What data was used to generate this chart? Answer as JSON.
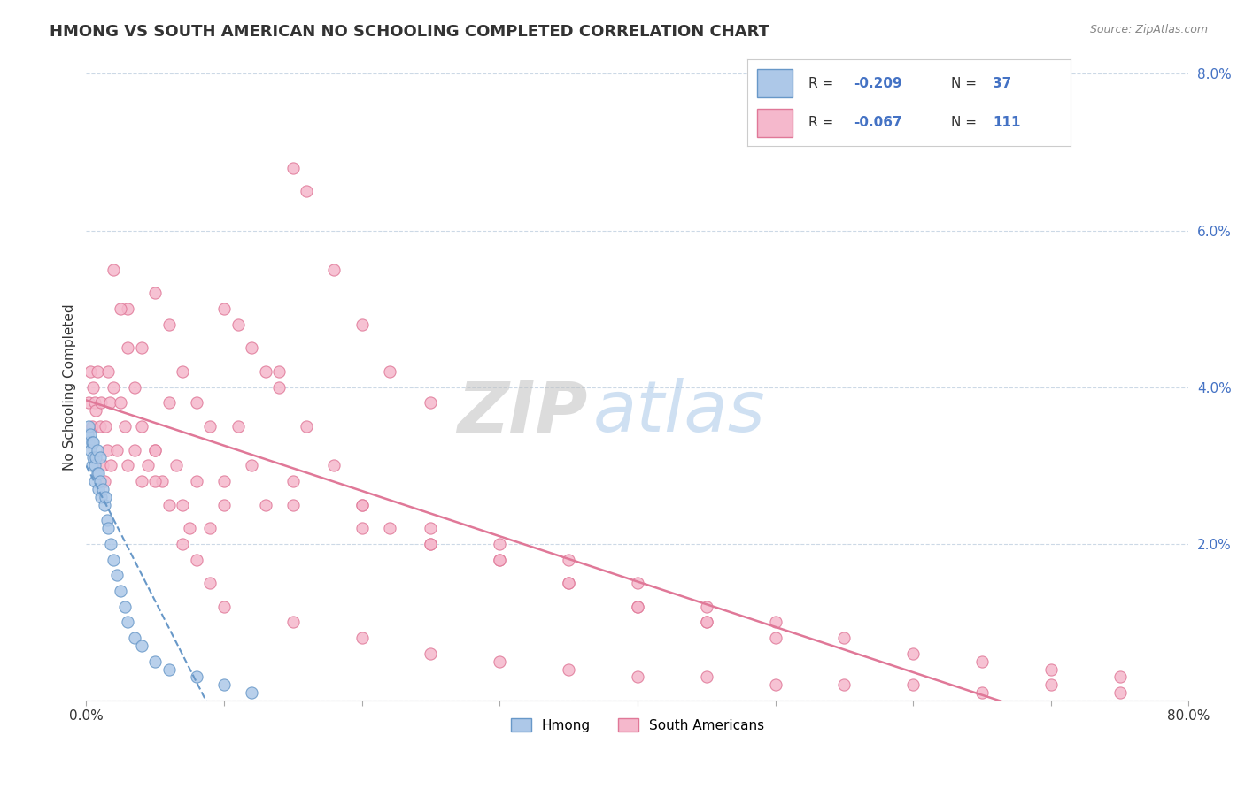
{
  "title": "HMONG VS SOUTH AMERICAN NO SCHOOLING COMPLETED CORRELATION CHART",
  "source": "Source: ZipAtlas.com",
  "ylabel": "No Schooling Completed",
  "xlim": [
    0.0,
    0.8
  ],
  "ylim": [
    0.0,
    0.08
  ],
  "legend_R1": "-0.209",
  "legend_N1": "37",
  "legend_R2": "-0.067",
  "legend_N2": "111",
  "legend_label1": "Hmong",
  "legend_label2": "South Americans",
  "hmong_color": "#adc8e8",
  "hmong_edge_color": "#6898c8",
  "sa_color": "#f5b8cc",
  "sa_edge_color": "#e07898",
  "trend1_color": "#6898c8",
  "trend2_color": "#e07898",
  "hmong_x": [
    0.001,
    0.002,
    0.002,
    0.003,
    0.003,
    0.004,
    0.004,
    0.005,
    0.005,
    0.006,
    0.006,
    0.007,
    0.008,
    0.008,
    0.009,
    0.009,
    0.01,
    0.01,
    0.011,
    0.012,
    0.013,
    0.014,
    0.015,
    0.016,
    0.018,
    0.02,
    0.022,
    0.025,
    0.028,
    0.03,
    0.035,
    0.04,
    0.05,
    0.06,
    0.08,
    0.1,
    0.12
  ],
  "hmong_y": [
    0.034,
    0.033,
    0.035,
    0.032,
    0.034,
    0.03,
    0.033,
    0.031,
    0.033,
    0.028,
    0.03,
    0.031,
    0.029,
    0.032,
    0.027,
    0.029,
    0.028,
    0.031,
    0.026,
    0.027,
    0.025,
    0.026,
    0.023,
    0.022,
    0.02,
    0.018,
    0.016,
    0.014,
    0.012,
    0.01,
    0.008,
    0.007,
    0.005,
    0.004,
    0.003,
    0.002,
    0.001
  ],
  "sa_x": [
    0.002,
    0.003,
    0.004,
    0.005,
    0.006,
    0.007,
    0.008,
    0.01,
    0.011,
    0.012,
    0.013,
    0.014,
    0.015,
    0.016,
    0.017,
    0.018,
    0.02,
    0.022,
    0.025,
    0.028,
    0.03,
    0.035,
    0.04,
    0.045,
    0.05,
    0.055,
    0.06,
    0.065,
    0.07,
    0.075,
    0.08,
    0.09,
    0.1,
    0.11,
    0.12,
    0.13,
    0.14,
    0.15,
    0.16,
    0.18,
    0.2,
    0.22,
    0.25,
    0.03,
    0.04,
    0.05,
    0.06,
    0.07,
    0.08,
    0.09,
    0.1,
    0.11,
    0.12,
    0.13,
    0.14,
    0.16,
    0.18,
    0.2,
    0.22,
    0.25,
    0.3,
    0.35,
    0.4,
    0.45,
    0.5,
    0.02,
    0.025,
    0.03,
    0.035,
    0.04,
    0.05,
    0.06,
    0.07,
    0.08,
    0.09,
    0.1,
    0.15,
    0.2,
    0.25,
    0.3,
    0.35,
    0.4,
    0.45,
    0.5,
    0.55,
    0.6,
    0.65,
    0.7,
    0.75,
    0.15,
    0.2,
    0.25,
    0.3,
    0.35,
    0.4,
    0.45,
    0.5,
    0.55,
    0.6,
    0.65,
    0.7,
    0.75,
    0.05,
    0.1,
    0.15,
    0.2,
    0.25,
    0.3,
    0.35,
    0.4,
    0.45
  ],
  "sa_y": [
    0.038,
    0.042,
    0.035,
    0.04,
    0.038,
    0.037,
    0.042,
    0.035,
    0.038,
    0.03,
    0.028,
    0.035,
    0.032,
    0.042,
    0.038,
    0.03,
    0.04,
    0.032,
    0.038,
    0.035,
    0.03,
    0.032,
    0.028,
    0.03,
    0.032,
    0.028,
    0.038,
    0.03,
    0.025,
    0.022,
    0.028,
    0.022,
    0.025,
    0.035,
    0.03,
    0.025,
    0.042,
    0.068,
    0.065,
    0.055,
    0.048,
    0.042,
    0.038,
    0.05,
    0.045,
    0.052,
    0.048,
    0.042,
    0.038,
    0.035,
    0.05,
    0.048,
    0.045,
    0.042,
    0.04,
    0.035,
    0.03,
    0.025,
    0.022,
    0.02,
    0.018,
    0.015,
    0.012,
    0.01,
    0.008,
    0.055,
    0.05,
    0.045,
    0.04,
    0.035,
    0.028,
    0.025,
    0.02,
    0.018,
    0.015,
    0.012,
    0.01,
    0.008,
    0.006,
    0.005,
    0.004,
    0.003,
    0.003,
    0.002,
    0.002,
    0.002,
    0.001,
    0.002,
    0.001,
    0.028,
    0.025,
    0.022,
    0.02,
    0.018,
    0.015,
    0.012,
    0.01,
    0.008,
    0.006,
    0.005,
    0.004,
    0.003,
    0.032,
    0.028,
    0.025,
    0.022,
    0.02,
    0.018,
    0.015,
    0.012,
    0.01
  ]
}
